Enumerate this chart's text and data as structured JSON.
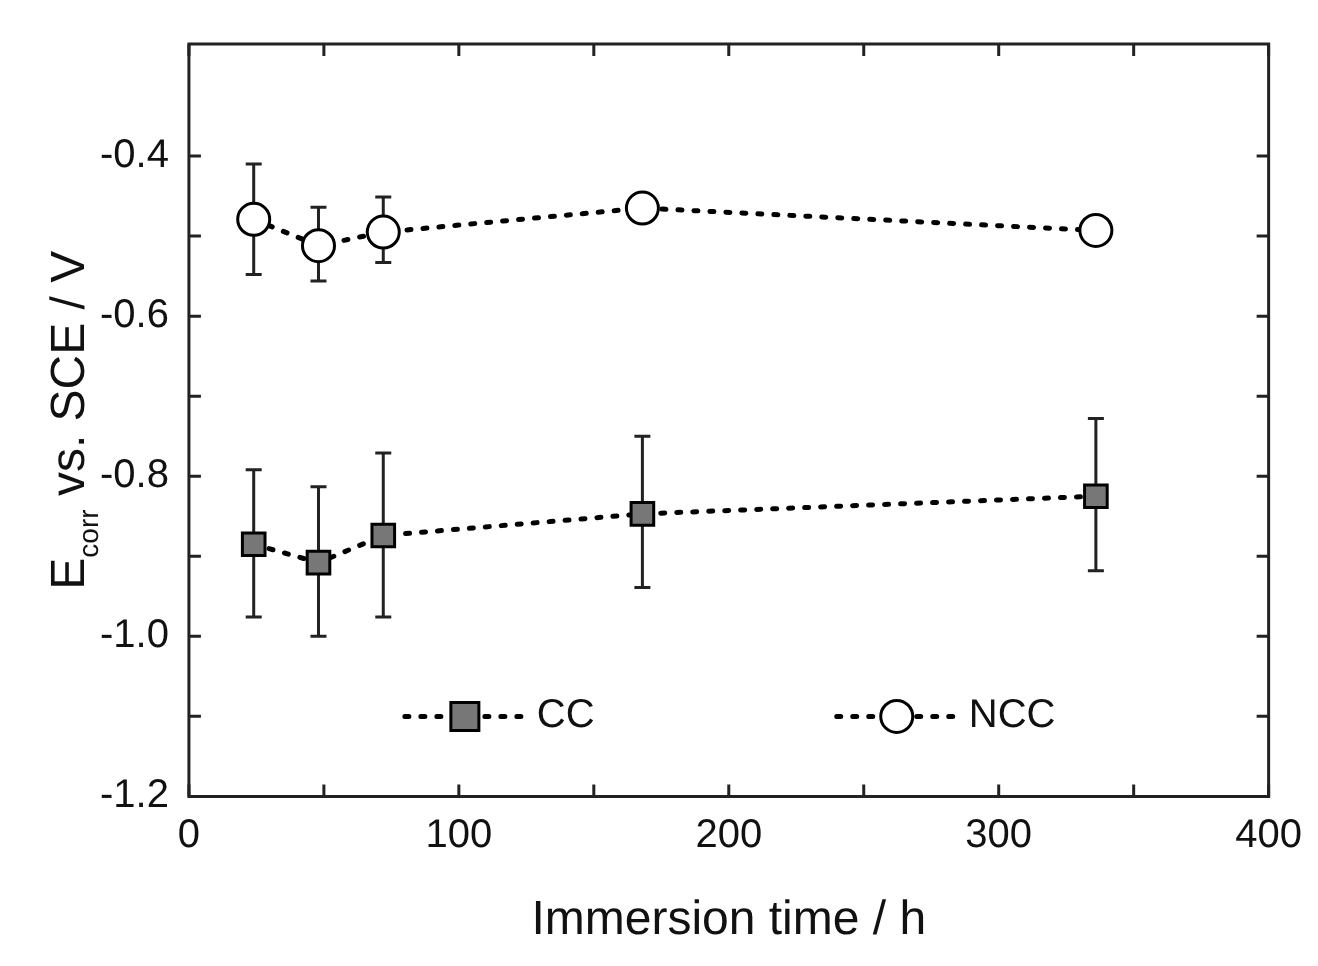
{
  "chart_data": {
    "type": "line",
    "xlabel": "Immersion time / h",
    "ylabel": "E$_{corr}$ vs. SCE / V",
    "x": [
      24,
      48,
      72,
      168,
      336
    ],
    "series": [
      {
        "name": "CC",
        "color": "#777777",
        "marker": "square",
        "values": [
          -0.885,
          -0.908,
          -0.874,
          -0.847,
          -0.825
        ],
        "errors": [
          [
            -0.976,
            -0.792
          ],
          [
            -1.0,
            -0.813
          ],
          [
            -0.976,
            -0.771
          ],
          [
            -0.939,
            -0.75
          ],
          [
            -0.918,
            -0.728
          ]
        ]
      },
      {
        "name": "NCC",
        "color": "#ffffff",
        "marker": "circle",
        "values": [
          -0.479,
          -0.512,
          -0.495,
          -0.465,
          -0.493
        ],
        "errors": [
          [
            -0.548,
            -0.41
          ],
          [
            -0.556,
            -0.464
          ],
          [
            -0.533,
            -0.451
          ],
          null,
          null
        ]
      }
    ],
    "xlim": [
      0,
      400
    ],
    "xticks": [
      0,
      {
        "value": 50,
        "label": null
      },
      100,
      {
        "value": 150,
        "label": null
      },
      200,
      {
        "value": 250,
        "label": null
      },
      300,
      {
        "value": 350,
        "label": null
      },
      400
    ],
    "ylim": [
      -1.2,
      -0.26
    ],
    "yticks": [
      -1.2,
      {
        "value": -1.1,
        "label": null
      },
      {
        "value": -1.0,
        "label": "-1.0"
      },
      {
        "value": -0.9,
        "label": null
      },
      -0.8,
      {
        "value": -0.7,
        "label": null
      },
      -0.6,
      {
        "value": -0.5,
        "label": null
      },
      -0.4
    ],
    "grid": false,
    "legend": "bottom",
    "line_style": "dotted"
  }
}
